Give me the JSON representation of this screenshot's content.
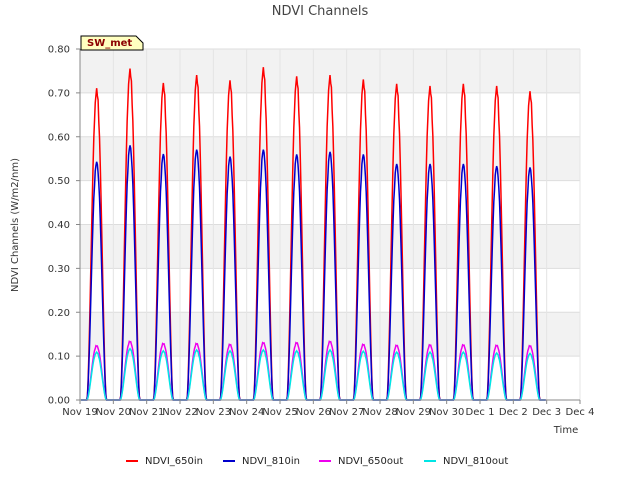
{
  "chart_data": {
    "type": "line",
    "title": "NDVI Channels",
    "xlabel": "Time",
    "ylabel": "NDVI Channels (W/m2/nm)",
    "badge": "SW_met",
    "x_domain": [
      0,
      15
    ],
    "ylim": [
      0,
      0.8
    ],
    "y_ticks": [
      0.0,
      0.1,
      0.2,
      0.3,
      0.4,
      0.5,
      0.6,
      0.7,
      0.8
    ],
    "y_tick_labels": [
      "0.00",
      "0.10",
      "0.20",
      "0.30",
      "0.40",
      "0.50",
      "0.60",
      "0.70",
      "0.80"
    ],
    "x_ticks": [
      0,
      1,
      2,
      3,
      4,
      5,
      6,
      7,
      8,
      9,
      10,
      11,
      12,
      13,
      14,
      15
    ],
    "x_tick_labels": [
      "Nov 19",
      "Nov 20",
      "Nov 21",
      "Nov 22",
      "Nov 23",
      "Nov 24",
      "Nov 25",
      "Nov 26",
      "Nov 27",
      "Nov 28",
      "Nov 29",
      "Nov 30",
      "Dec 1",
      "Dec 2",
      "Dec 3",
      "Dec 4"
    ],
    "day_centers": [
      0.5,
      1.5,
      2.5,
      3.5,
      4.5,
      5.5,
      6.5,
      7.5,
      8.5,
      9.5,
      10.5,
      11.5,
      12.5,
      13.5,
      14.5
    ],
    "series": [
      {
        "name": "NDVI_650in",
        "color": "#ff0000",
        "peaks": [
          0.715,
          0.76,
          0.727,
          0.745,
          0.733,
          0.763,
          0.742,
          0.745,
          0.735,
          0.725,
          0.72,
          0.725,
          0.72,
          0.708
        ]
      },
      {
        "name": "NDVI_810in",
        "color": "#0000cc",
        "peaks": [
          0.55,
          0.588,
          0.568,
          0.578,
          0.562,
          0.578,
          0.567,
          0.573,
          0.567,
          0.545,
          0.545,
          0.545,
          0.54,
          0.537
        ]
      },
      {
        "name": "NDVI_650out",
        "color": "#ee00ee",
        "peaks": [
          0.125,
          0.135,
          0.13,
          0.13,
          0.128,
          0.132,
          0.132,
          0.135,
          0.128,
          0.126,
          0.127,
          0.127,
          0.126,
          0.125
        ]
      },
      {
        "name": "NDVI_810out",
        "color": "#00e5e5",
        "peaks": [
          0.11,
          0.118,
          0.113,
          0.115,
          0.113,
          0.115,
          0.113,
          0.115,
          0.112,
          0.11,
          0.11,
          0.11,
          0.108,
          0.107
        ]
      }
    ],
    "grid": true,
    "legend_position": "bottom"
  }
}
